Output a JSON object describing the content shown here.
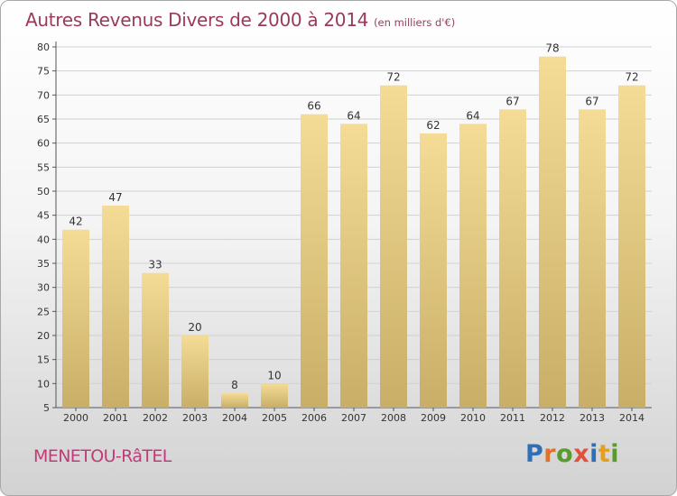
{
  "title": {
    "main": "Autres Revenus Divers de 2000 à 2014",
    "unit": "(en milliers d'€)"
  },
  "place_label": "MENETOU-RâTEL",
  "logo": {
    "text": "Proxiti",
    "letters": [
      {
        "ch": "P",
        "color": "#2f6fb7"
      },
      {
        "ch": "r",
        "color": "#e0722a"
      },
      {
        "ch": "o",
        "color": "#5a9a2e"
      },
      {
        "ch": "x",
        "color": "#e1503d"
      },
      {
        "ch": "i",
        "color": "#2f6fb7"
      },
      {
        "ch": "t",
        "color": "#e2a020"
      },
      {
        "ch": "i",
        "color": "#5a9a2e"
      }
    ]
  },
  "colors": {
    "bar_top": "#f5dc96",
    "bar_bottom": "#c8ae66",
    "title": "#9a3a5b",
    "place": "#c23a7a",
    "grid": "#d0d0d0"
  },
  "chart_data": {
    "type": "bar",
    "title": "Autres Revenus Divers de 2000 à 2014",
    "subtitle": "(en milliers d'€)",
    "xlabel": "",
    "ylabel": "",
    "categories": [
      "2000",
      "2001",
      "2002",
      "2003",
      "2004",
      "2005",
      "2006",
      "2007",
      "2008",
      "2009",
      "2010",
      "2011",
      "2012",
      "2013",
      "2014"
    ],
    "values": [
      42,
      47,
      33,
      20,
      8,
      10,
      66,
      64,
      72,
      62,
      64,
      67,
      78,
      67,
      72
    ],
    "ylim": [
      5,
      80
    ],
    "yticks": [
      5,
      10,
      15,
      20,
      25,
      30,
      35,
      40,
      45,
      50,
      55,
      60,
      65,
      70,
      75,
      80
    ],
    "grid": true,
    "data_labels": true
  }
}
